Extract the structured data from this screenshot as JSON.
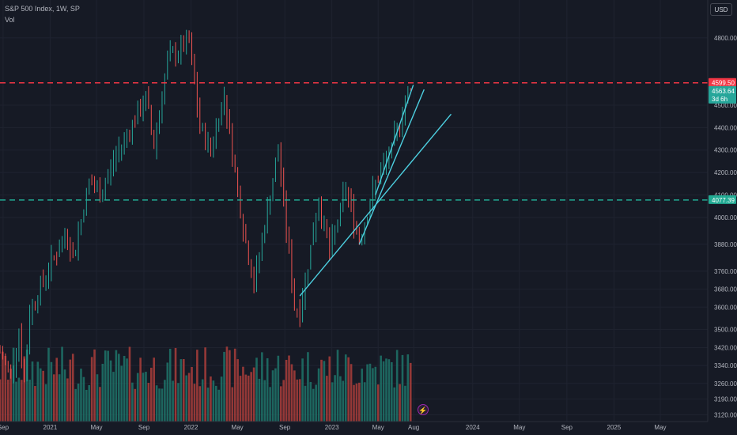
{
  "chart_data": {
    "type": "ohlc",
    "title": "S&P 500 Index, 1W, SP",
    "volume_label": "Vol",
    "currency": "USD",
    "colors": {
      "up": "#26a69a",
      "down": "#ef5350",
      "trendline": "#4dd0e1",
      "resistance": "#f23645",
      "support": "#22ab94",
      "background": "#161a25"
    },
    "x_range": [
      "2020-08-24",
      "2025-09-01"
    ],
    "y_range": [
      3090,
      4870
    ],
    "y_ticks": [
      3120.0,
      3190.0,
      3260.0,
      3340.0,
      3420.0,
      3500.0,
      3600.0,
      3680.0,
      3760.0,
      3880.0,
      4000.0,
      4100.0,
      4200.0,
      4300.0,
      4400.0,
      4500.0,
      4800.0
    ],
    "x_ticks": [
      {
        "label": "Sep",
        "date": "2020-09-01"
      },
      {
        "label": "2021",
        "date": "2021-01-01"
      },
      {
        "label": "May",
        "date": "2021-05-01"
      },
      {
        "label": "Sep",
        "date": "2021-09-01"
      },
      {
        "label": "2022",
        "date": "2022-01-01"
      },
      {
        "label": "May",
        "date": "2022-05-01"
      },
      {
        "label": "Sep",
        "date": "2022-09-01"
      },
      {
        "label": "2023",
        "date": "2023-01-01"
      },
      {
        "label": "May",
        "date": "2023-05-01"
      },
      {
        "label": "Aug",
        "date": "2023-08-01"
      },
      {
        "label": "2024",
        "date": "2024-01-01"
      },
      {
        "label": "May",
        "date": "2024-05-01"
      },
      {
        "label": "Sep",
        "date": "2024-09-01"
      },
      {
        "label": "2025",
        "date": "2025-01-01"
      },
      {
        "label": "May",
        "date": "2025-05-01"
      }
    ],
    "price_anchors": [
      {
        "date": "2020-08-24",
        "close": 3400
      },
      {
        "date": "2020-09-21",
        "close": 3300
      },
      {
        "date": "2020-10-12",
        "close": 3480
      },
      {
        "date": "2020-10-26",
        "close": 3270
      },
      {
        "date": "2020-11-09",
        "close": 3580
      },
      {
        "date": "2021-01-04",
        "close": 3800
      },
      {
        "date": "2021-02-15",
        "close": 3930
      },
      {
        "date": "2021-03-01",
        "close": 3820
      },
      {
        "date": "2021-04-12",
        "close": 4160
      },
      {
        "date": "2021-05-10",
        "close": 4100
      },
      {
        "date": "2021-06-21",
        "close": 4280
      },
      {
        "date": "2021-08-16",
        "close": 4460
      },
      {
        "date": "2021-09-06",
        "close": 4530
      },
      {
        "date": "2021-09-27",
        "close": 4320
      },
      {
        "date": "2021-11-01",
        "close": 4700
      },
      {
        "date": "2021-12-27",
        "close": 4780
      },
      {
        "date": "2022-01-24",
        "close": 4400
      },
      {
        "date": "2022-02-21",
        "close": 4300
      },
      {
        "date": "2022-03-28",
        "close": 4550
      },
      {
        "date": "2022-05-16",
        "close": 3950
      },
      {
        "date": "2022-06-13",
        "close": 3700
      },
      {
        "date": "2022-08-15",
        "close": 4300
      },
      {
        "date": "2022-09-26",
        "close": 3600
      },
      {
        "date": "2022-10-10",
        "close": 3580
      },
      {
        "date": "2022-11-28",
        "close": 4080
      },
      {
        "date": "2022-12-26",
        "close": 3840
      },
      {
        "date": "2023-02-06",
        "close": 4130
      },
      {
        "date": "2023-03-13",
        "close": 3900
      },
      {
        "date": "2023-04-24",
        "close": 4150
      },
      {
        "date": "2023-06-05",
        "close": 4300
      },
      {
        "date": "2023-07-17",
        "close": 4560
      },
      {
        "date": "2023-07-24",
        "close": 4564
      }
    ],
    "resistance_level": {
      "value": 4599.5,
      "label": "4599.50"
    },
    "support_level": {
      "value": 4077.39,
      "label": "4077.39"
    },
    "last_price": {
      "value": 4563.64,
      "label": "4563.64",
      "countdown": "3d 6h"
    },
    "trendlines": [
      {
        "from": {
          "date": "2022-10-10",
          "value": 3650
        },
        "to": {
          "date": "2023-11-06",
          "value": 4460
        }
      },
      {
        "from": {
          "date": "2023-03-13",
          "value": 3880
        },
        "to": {
          "date": "2023-08-28",
          "value": 4570
        }
      },
      {
        "from": {
          "date": "2023-04-24",
          "value": 4100
        },
        "to": {
          "date": "2023-07-31",
          "value": 4590
        }
      }
    ]
  }
}
